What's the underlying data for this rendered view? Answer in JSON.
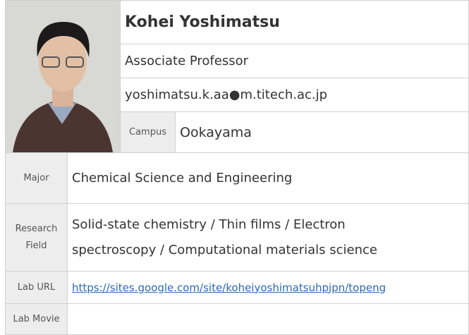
{
  "profile": {
    "name": "Kohei Yoshimatsu",
    "position": "Associate Professor",
    "email": "yoshimatsu.k.aa●m.titech.ac.jp",
    "campus": {
      "label": "Campus",
      "value": "Ookayama"
    }
  },
  "details": {
    "rows": [
      {
        "label": "Major",
        "value": "Chemical Science and Engineering"
      },
      {
        "label": "Research Field",
        "value": "Solid-state chemistry / Thin films / Electron spectroscopy / Computational materials science"
      },
      {
        "label": "Lab URL",
        "value": "https://sites.google.com/site/koheiyoshimatsuhpjpn/topeng"
      },
      {
        "label": "Lab Movie",
        "value": null
      }
    ]
  }
}
